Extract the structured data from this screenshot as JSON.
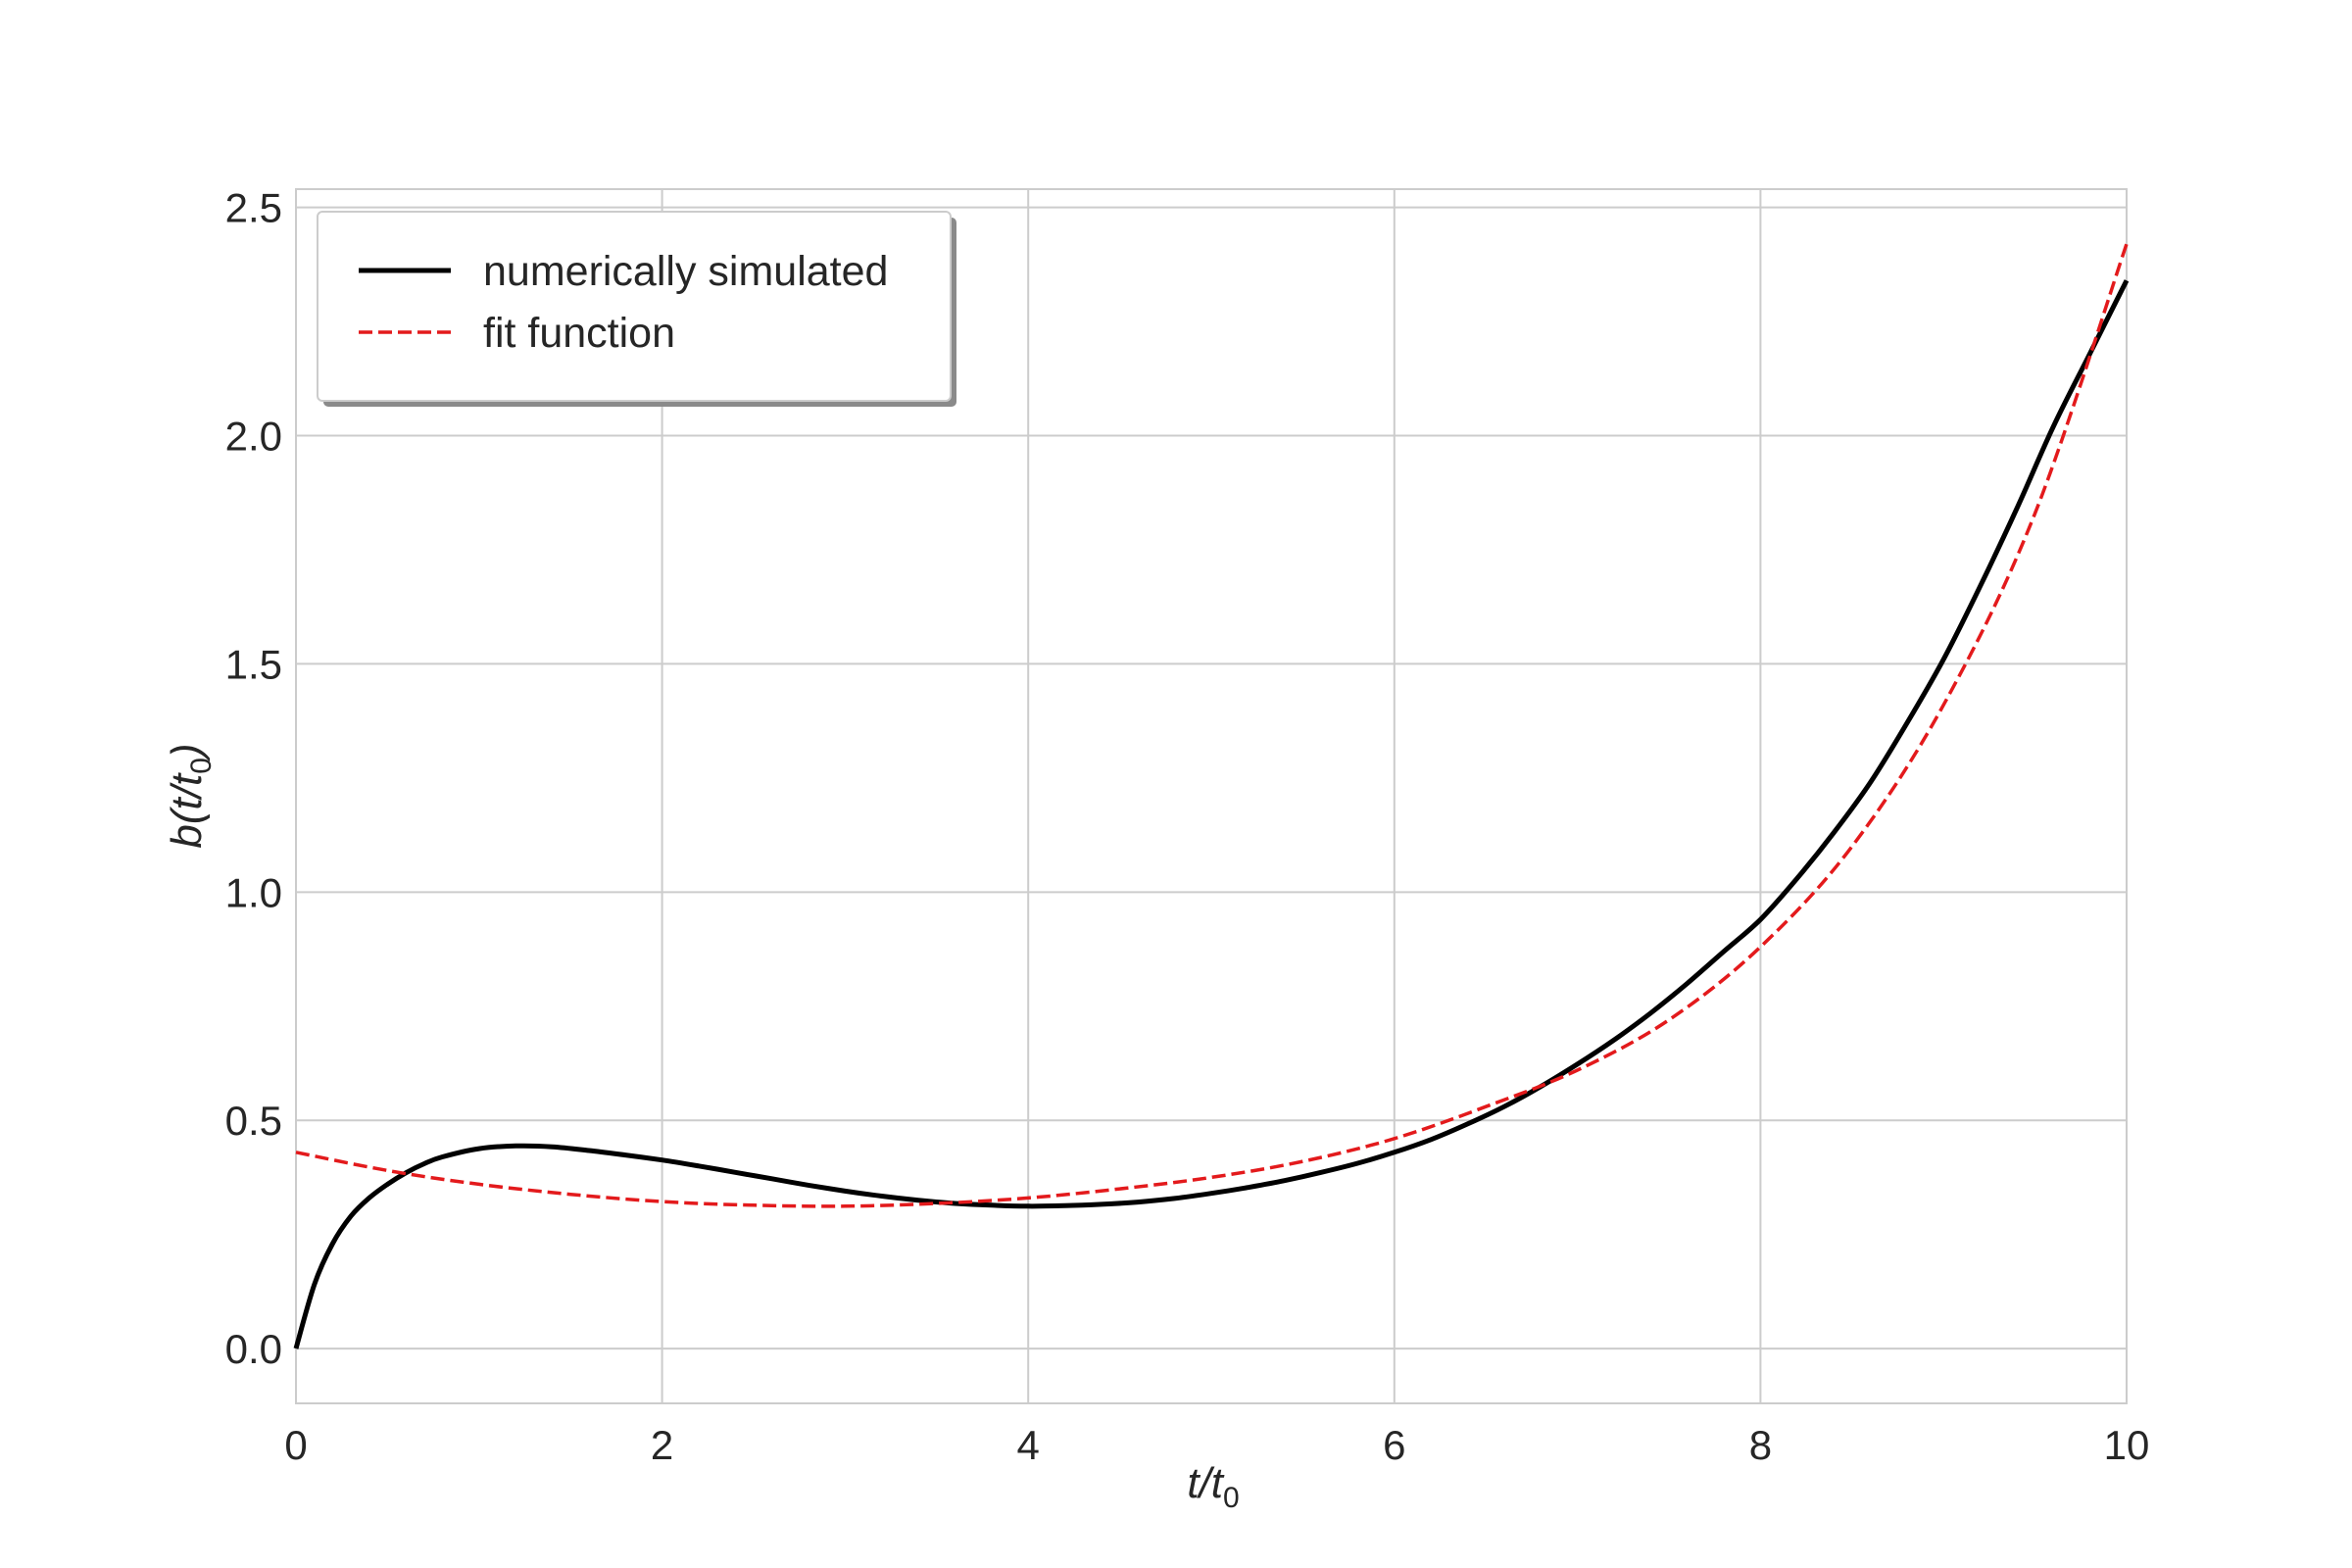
{
  "chart_data": {
    "type": "line",
    "xlabel": "t/t0",
    "ylabel": "b(t/t0)",
    "xlim": [
      0,
      10
    ],
    "ylim": [
      -0.12,
      2.54
    ],
    "xticks": [
      "0",
      "2",
      "4",
      "6",
      "8",
      "10"
    ],
    "yticks": [
      "0.0",
      "0.5",
      "1.0",
      "1.5",
      "2.0",
      "2.5"
    ],
    "grid": true,
    "legend_position": "top-left",
    "series": [
      {
        "name": "numerically simulated",
        "color": "#000000",
        "style": "solid",
        "x": [
          0,
          0.1,
          0.2,
          0.3,
          0.4,
          0.5,
          0.6,
          0.7,
          0.8,
          1.0,
          1.2,
          1.4,
          1.6,
          1.8,
          2.0,
          2.2,
          2.4,
          2.6,
          2.8,
          3.0,
          3.2,
          3.4,
          3.6,
          3.8,
          4.0,
          4.2,
          4.4,
          4.6,
          4.8,
          5.0,
          5.2,
          5.4,
          5.6,
          5.8,
          6.0,
          6.2,
          6.4,
          6.6,
          6.8,
          7.0,
          7.2,
          7.4,
          7.6,
          7.8,
          8.0,
          8.2,
          8.4,
          8.6,
          8.8,
          9.0,
          9.2,
          9.4,
          9.6,
          9.8,
          10.0
        ],
        "y": [
          0.0,
          0.14,
          0.23,
          0.29,
          0.33,
          0.36,
          0.385,
          0.405,
          0.42,
          0.438,
          0.444,
          0.442,
          0.434,
          0.424,
          0.413,
          0.4,
          0.386,
          0.372,
          0.358,
          0.345,
          0.334,
          0.325,
          0.318,
          0.314,
          0.312,
          0.313,
          0.316,
          0.321,
          0.329,
          0.34,
          0.353,
          0.368,
          0.386,
          0.406,
          0.43,
          0.458,
          0.492,
          0.53,
          0.574,
          0.623,
          0.676,
          0.735,
          0.8,
          0.87,
          0.94,
          1.03,
          1.13,
          1.24,
          1.37,
          1.51,
          1.67,
          1.84,
          2.02,
          2.18,
          2.34
        ]
      },
      {
        "name": "fit function",
        "color": "#e31a1c",
        "style": "dashed",
        "x": [
          0,
          0.5,
          1.0,
          1.5,
          2.0,
          2.5,
          3.0,
          3.5,
          4.0,
          4.5,
          5.0,
          5.5,
          6.0,
          6.5,
          7.0,
          7.5,
          8.0,
          8.5,
          9.0,
          9.5,
          10.0
        ],
        "y": [
          0.43,
          0.39,
          0.36,
          0.338,
          0.322,
          0.314,
          0.312,
          0.318,
          0.33,
          0.35,
          0.375,
          0.41,
          0.46,
          0.53,
          0.61,
          0.72,
          0.88,
          1.1,
          1.41,
          1.83,
          2.42
        ]
      }
    ]
  }
}
